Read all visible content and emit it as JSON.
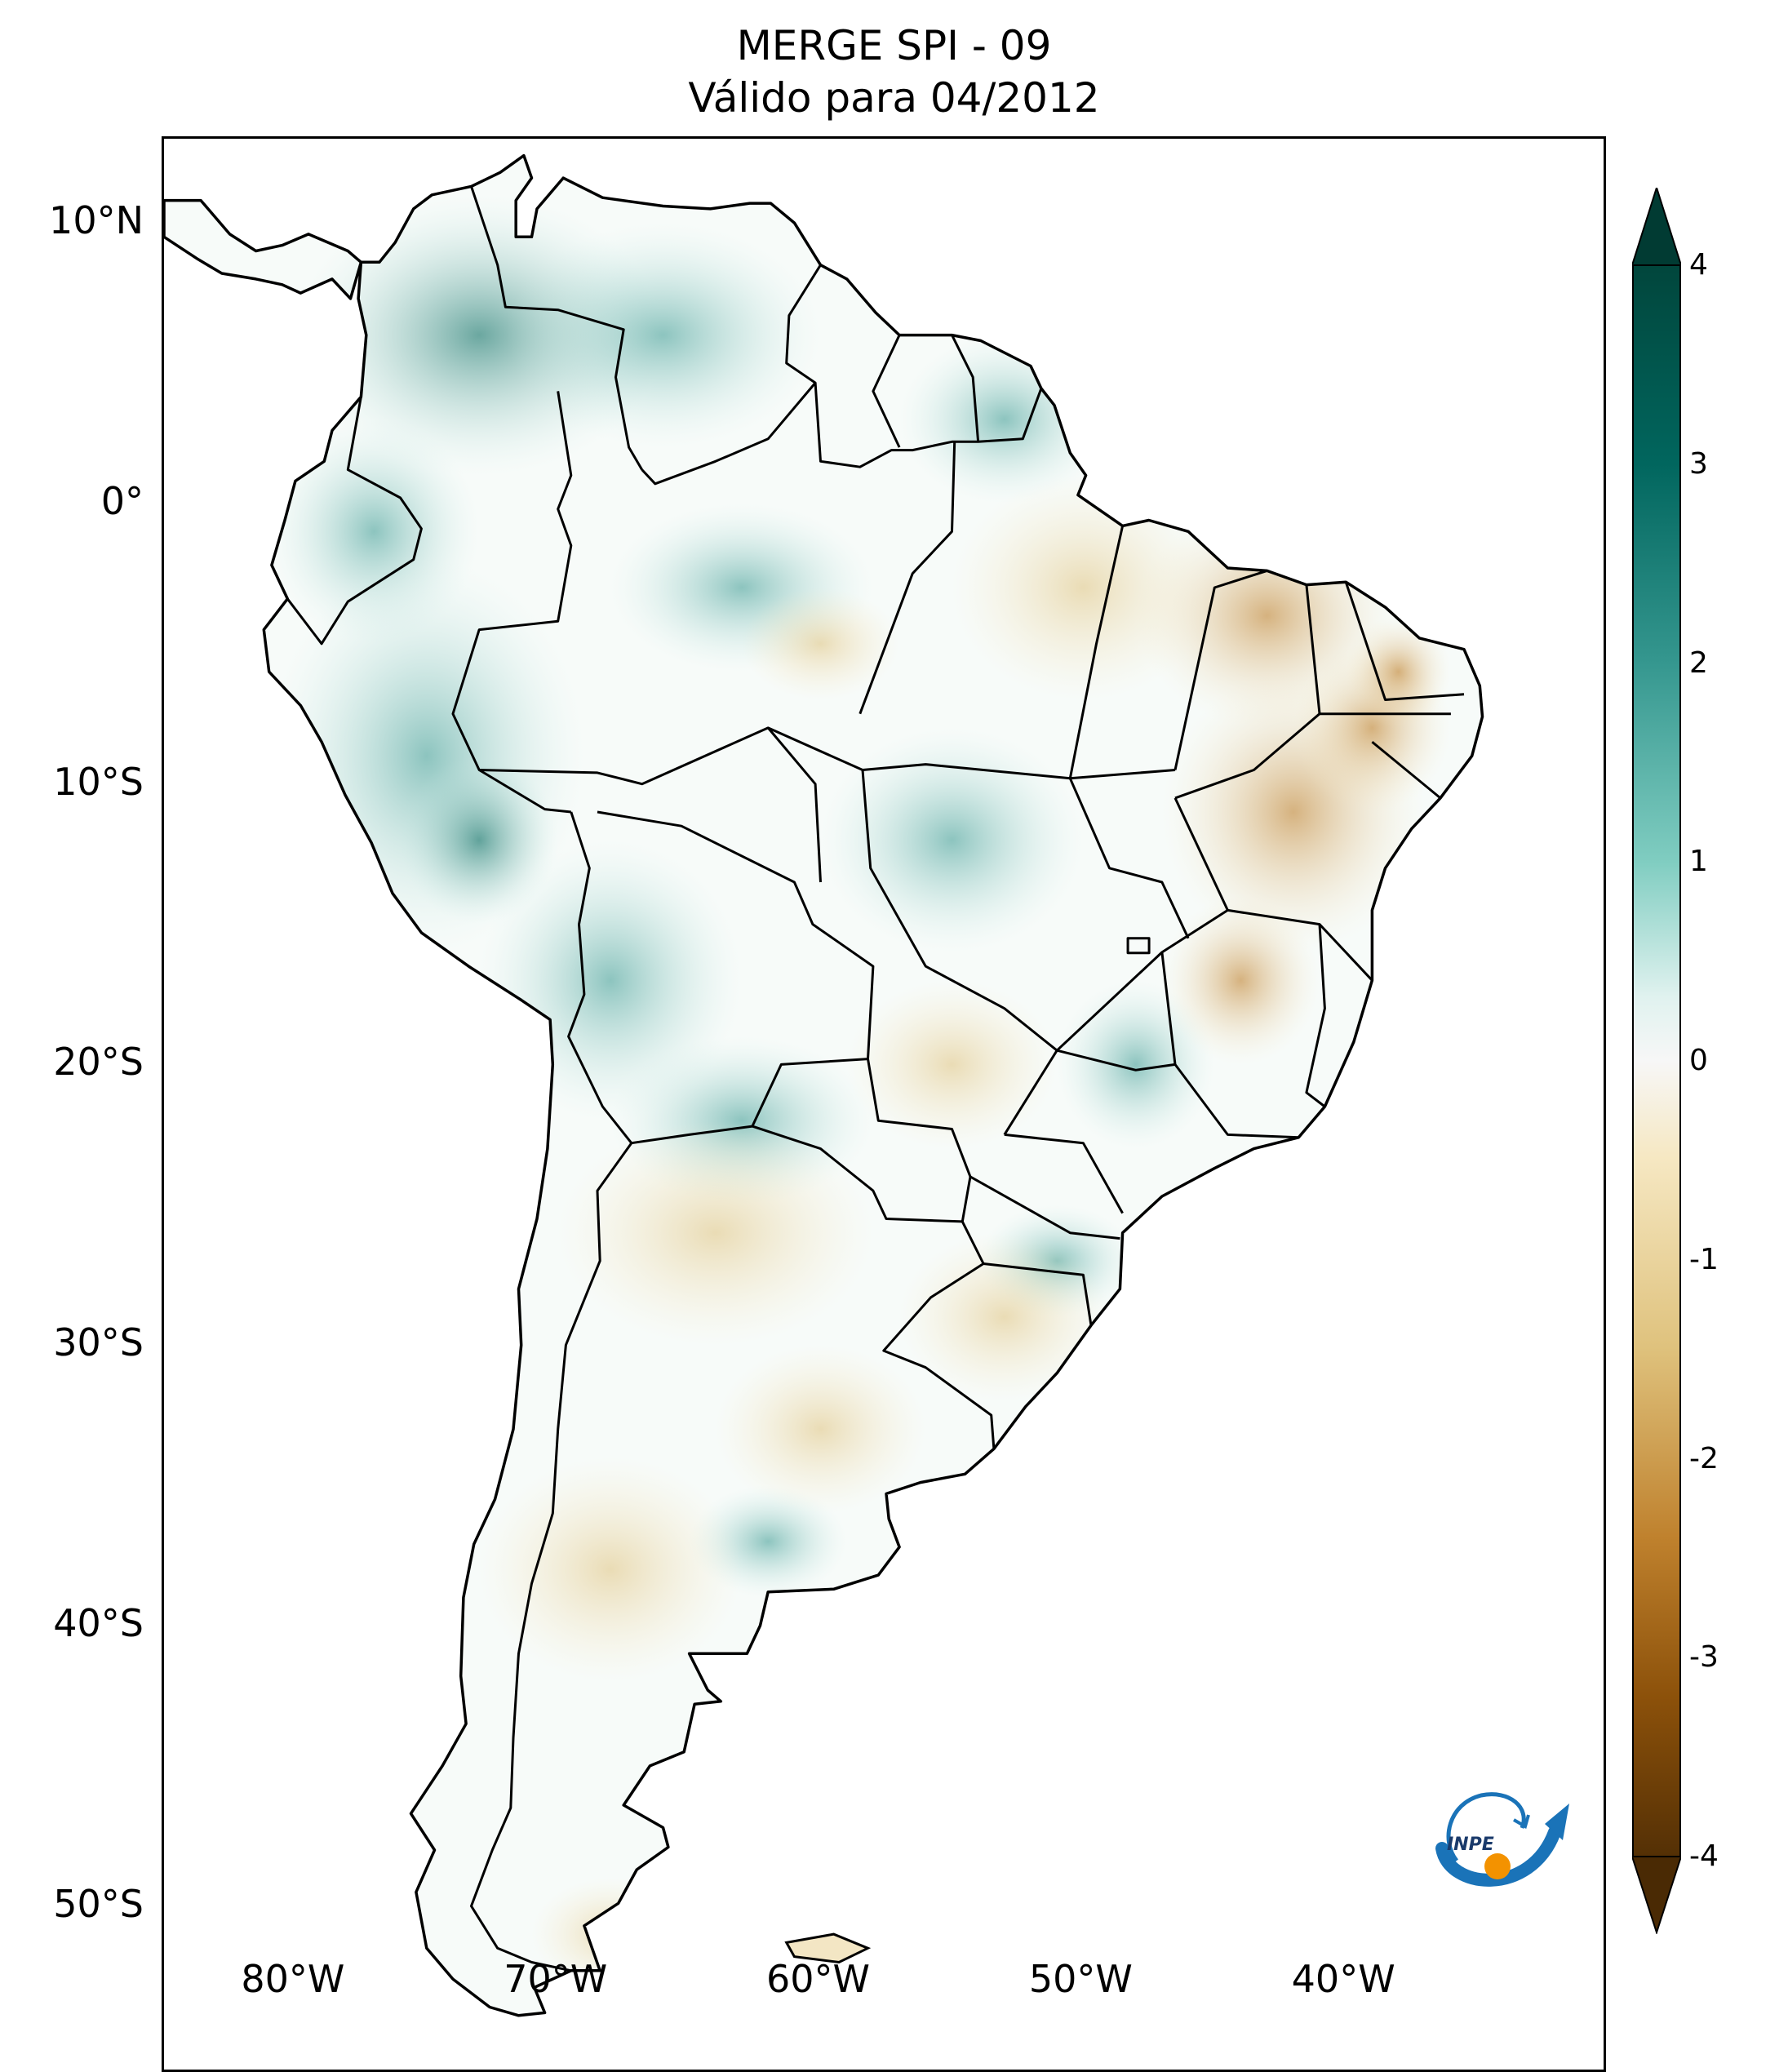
{
  "title": {
    "line1": "MERGE   SPI - 09",
    "line2": "Válido para 04/2012"
  },
  "map": {
    "lat_ticks": [
      "10°N",
      "0°",
      "10°S",
      "20°S",
      "30°S",
      "40°S",
      "50°S"
    ],
    "lon_ticks": [
      "80°W",
      "70°W",
      "60°W",
      "50°W",
      "40°W"
    ],
    "lat_values": [
      10,
      0,
      -10,
      -20,
      -30,
      -40,
      -50
    ],
    "lon_values": [
      -80,
      -70,
      -60,
      -50,
      -40
    ],
    "extent": {
      "lon_min": -85,
      "lon_max": -30,
      "lat_min": -56,
      "lat_max": 13
    }
  },
  "colorbar": {
    "min": -4,
    "max": 4,
    "extend": "both",
    "ticks": [
      "4",
      "3",
      "2",
      "1",
      "0",
      "-1",
      "-2",
      "-3",
      "-4"
    ],
    "tick_values": [
      4,
      3,
      2,
      1,
      0,
      -1,
      -2,
      -3,
      -4
    ],
    "colors": {
      "wet_max": "#01463c",
      "wet_mid": "#35978f",
      "wet_light": "#c7eae5",
      "neutral": "#f5f5f5",
      "dry_light": "#f6e8c3",
      "dry_mid": "#bf812d",
      "dry_max": "#543005"
    }
  },
  "logo": {
    "text": "INPE",
    "colors": {
      "blue": "#1a73b8",
      "orange": "#f39200"
    }
  }
}
